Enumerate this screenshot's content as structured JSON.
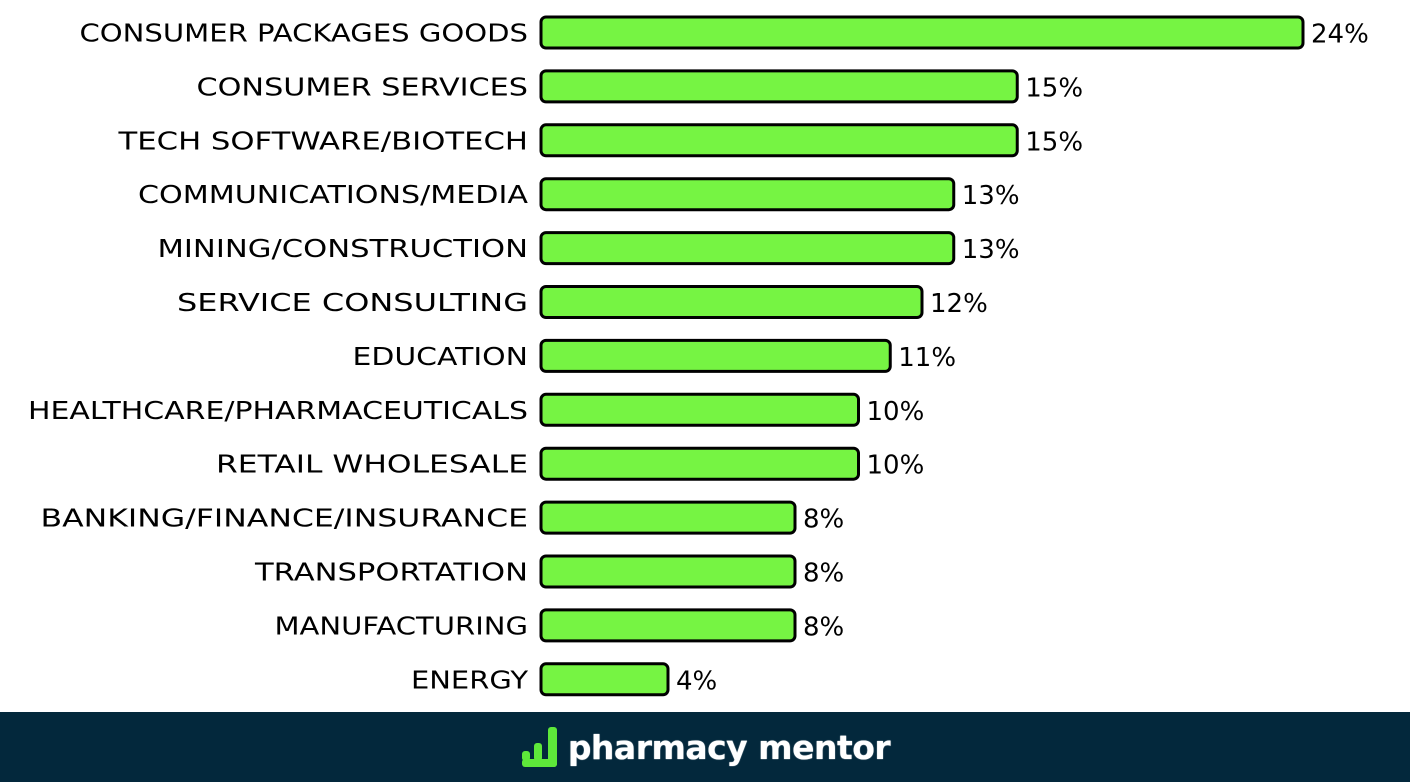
{
  "chart_data": {
    "type": "bar",
    "orientation": "horizontal",
    "categories": [
      "CONSUMER PACKAGES GOODS",
      "CONSUMER SERVICES",
      "TECH SOFTWARE/BIOTECH",
      "COMMUNICATIONS/MEDIA",
      "MINING/CONSTRUCTION",
      "SERVICE CONSULTING",
      "EDUCATION",
      "HEALTHCARE/PHARMACEUTICALS",
      "RETAIL WHOLESALE",
      "BANKING/FINANCE/INSURANCE",
      "TRANSPORTATION",
      "MANUFACTURING",
      "ENERGY"
    ],
    "values": [
      24,
      15,
      15,
      13,
      13,
      12,
      11,
      10,
      10,
      8,
      8,
      8,
      4
    ],
    "data_labels": [
      "24%",
      "15%",
      "15%",
      "13%",
      "13%",
      "12%",
      "11%",
      "10%",
      "10%",
      "8%",
      "8%",
      "8%",
      "4%"
    ],
    "unit": "%",
    "bar_color": "#76f443",
    "bar_outline_color": "#000000",
    "grid": false,
    "legend": "none"
  },
  "footer": {
    "brand": "pharmacy mentor",
    "background_color": "#03283c",
    "logo_icon": "bar-chart-icon",
    "logo_icon_color": "#5ee83a"
  }
}
